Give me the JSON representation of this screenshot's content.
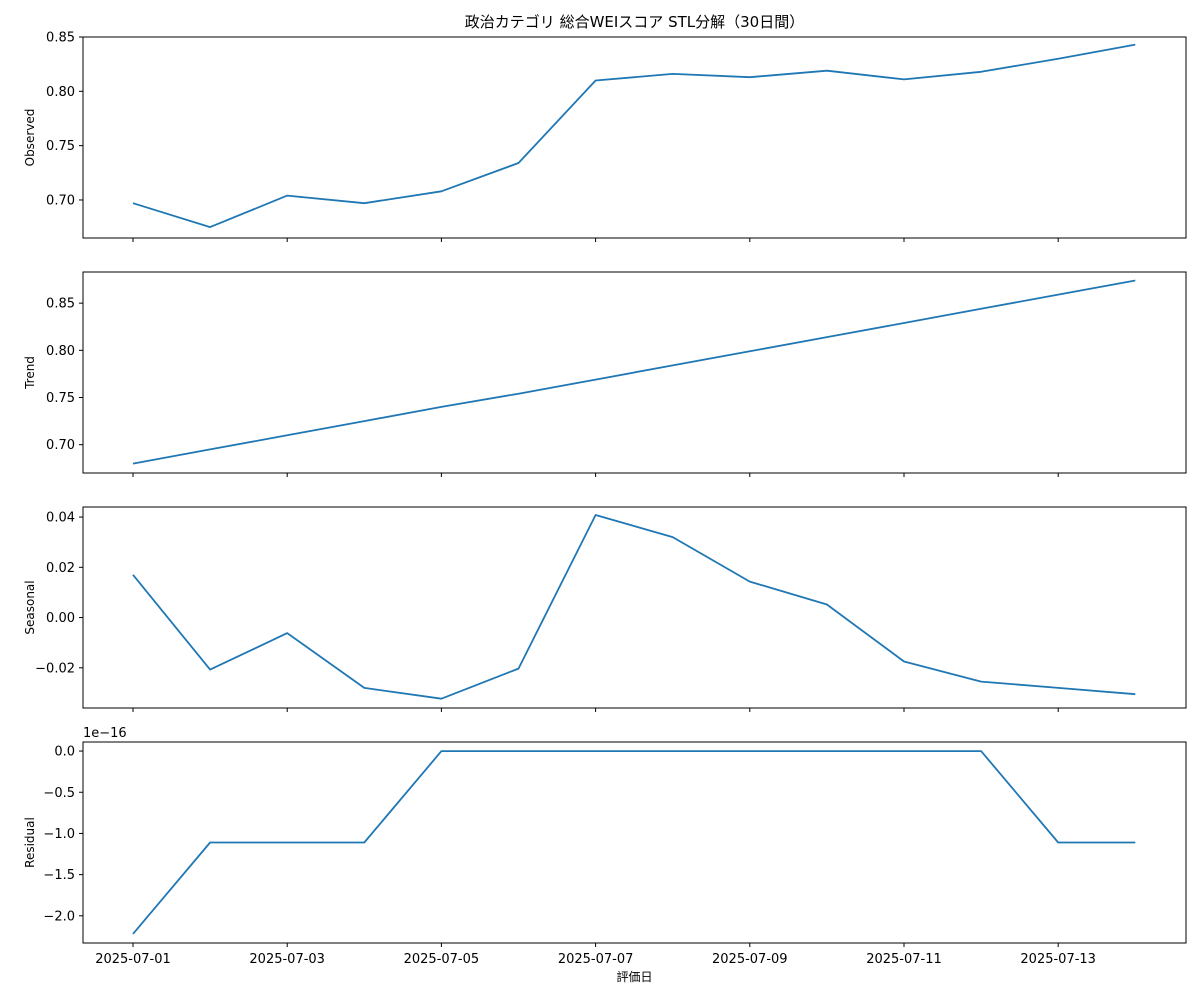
{
  "chart_data": [
    {
      "type": "line",
      "title": "政治カテゴリ 総合WEIスコア STL分解（30日間）",
      "ylabel": "Observed",
      "xlabel": "",
      "ylim": [
        0.665,
        0.85
      ],
      "yticks": [
        "0.70",
        "0.75",
        "0.80",
        "0.85"
      ],
      "x": [
        "2025-07-01",
        "2025-07-02",
        "2025-07-03",
        "2025-07-04",
        "2025-07-05",
        "2025-07-06",
        "2025-07-07",
        "2025-07-08",
        "2025-07-09",
        "2025-07-10",
        "2025-07-11",
        "2025-07-12",
        "2025-07-13",
        "2025-07-14"
      ],
      "series": [
        {
          "values": [
            0.697,
            0.675,
            0.704,
            0.697,
            0.708,
            0.734,
            0.81,
            0.816,
            0.813,
            0.819,
            0.811,
            0.818,
            0.83,
            0.843
          ]
        }
      ],
      "color": "#1f77b4"
    },
    {
      "type": "line",
      "ylabel": "Trend",
      "xlabel": "",
      "ylim": [
        0.67,
        0.883
      ],
      "yticks": [
        "0.70",
        "0.75",
        "0.80",
        "0.85"
      ],
      "x": [
        "2025-07-01",
        "2025-07-02",
        "2025-07-03",
        "2025-07-04",
        "2025-07-05",
        "2025-07-06",
        "2025-07-07",
        "2025-07-08",
        "2025-07-09",
        "2025-07-10",
        "2025-07-11",
        "2025-07-12",
        "2025-07-13",
        "2025-07-14"
      ],
      "series": [
        {
          "values": [
            0.68,
            0.695,
            0.71,
            0.725,
            0.74,
            0.754,
            0.769,
            0.784,
            0.799,
            0.814,
            0.829,
            0.844,
            0.859,
            0.874
          ]
        }
      ],
      "color": "#1f77b4"
    },
    {
      "type": "line",
      "ylabel": "Seasonal",
      "xlabel": "",
      "ylim": [
        -0.036,
        0.044
      ],
      "yticks": [
        "−0.02",
        "0.00",
        "0.02",
        "0.04"
      ],
      "x": [
        "2025-07-01",
        "2025-07-02",
        "2025-07-03",
        "2025-07-04",
        "2025-07-05",
        "2025-07-06",
        "2025-07-07",
        "2025-07-08",
        "2025-07-09",
        "2025-07-10",
        "2025-07-11",
        "2025-07-12",
        "2025-07-13",
        "2025-07-14"
      ],
      "series": [
        {
          "values": [
            0.017,
            -0.0207,
            -0.0062,
            -0.028,
            -0.0323,
            -0.0203,
            0.0408,
            0.032,
            0.0143,
            0.0052,
            -0.0175,
            -0.0255,
            -0.028,
            -0.0305
          ]
        }
      ],
      "color": "#1f77b4"
    },
    {
      "type": "line",
      "ylabel": "Residual",
      "xlabel": "評価日",
      "offset_text": "1e−16",
      "ylim": [
        -2.33,
        0.11
      ],
      "yticks": [
        "−2.0",
        "−1.5",
        "−1.0",
        "−0.5",
        "0.0"
      ],
      "x": [
        "2025-07-01",
        "2025-07-02",
        "2025-07-03",
        "2025-07-04",
        "2025-07-05",
        "2025-07-06",
        "2025-07-07",
        "2025-07-08",
        "2025-07-09",
        "2025-07-10",
        "2025-07-11",
        "2025-07-12",
        "2025-07-13",
        "2025-07-14"
      ],
      "series": [
        {
          "values": [
            -2.22,
            -1.11,
            -1.11,
            -1.11,
            0,
            0,
            0,
            0,
            0,
            0,
            0,
            0,
            -1.11,
            -1.11
          ]
        }
      ],
      "color": "#1f77b4"
    }
  ],
  "x_tick_labels": [
    "2025-07-01",
    "2025-07-03",
    "2025-07-05",
    "2025-07-07",
    "2025-07-09",
    "2025-07-11",
    "2025-07-13"
  ]
}
